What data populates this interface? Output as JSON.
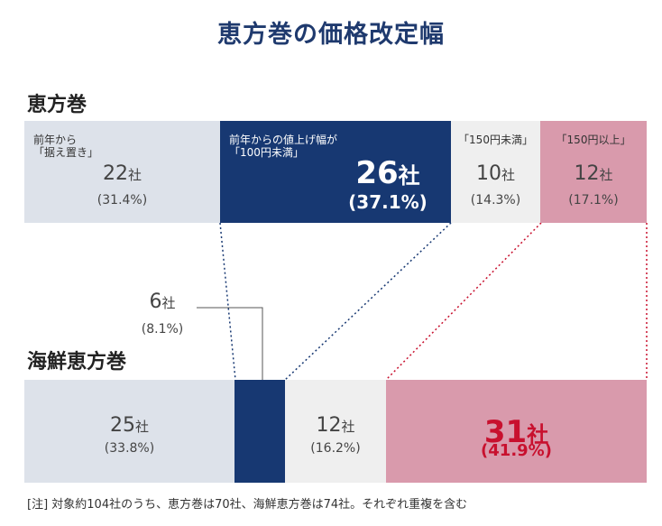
{
  "title": "恵方巻の価格改定幅",
  "colors": {
    "gray": "#dde2ea",
    "navy": "#173872",
    "lightgray": "#efefef",
    "pink": "#d99aac",
    "red": "#c8102e",
    "title": "#1f3a6e"
  },
  "chart_data": {
    "type": "bar",
    "orientation": "horizontal-stacked-100",
    "title": "恵方巻の価格改定幅",
    "note": "[注] 対象約104社のうち、恵方巻は70社、海鮮恵方巻は74社。それぞれ重複を含む",
    "categories": [
      "前年から「据え置き」",
      "前年からの値上げ幅が「100円未満」",
      "「150円未満」",
      "「150円以上」"
    ],
    "rows": [
      {
        "name": "恵方巻",
        "segments": [
          {
            "label_lines": [
              "前年から",
              "「据え置き」"
            ],
            "count": "22",
            "unit": "社",
            "pct": "(31.4%)",
            "value": 31.4
          },
          {
            "label_lines": [
              "前年からの値上げ幅が",
              "「100円未満」"
            ],
            "count": "26",
            "unit": "社",
            "pct": "(37.1%)",
            "value": 37.1
          },
          {
            "label_lines": [
              "「150円未満」"
            ],
            "count": "10",
            "unit": "社",
            "pct": "(14.3%)",
            "value": 14.3
          },
          {
            "label_lines": [
              "「150円以上」"
            ],
            "count": "12",
            "unit": "社",
            "pct": "(17.1%)",
            "value": 17.1
          }
        ]
      },
      {
        "name": "海鮮恵方巻",
        "segments": [
          {
            "count": "25",
            "unit": "社",
            "pct": "(33.8%)",
            "value": 33.8
          },
          {
            "count": "6",
            "unit": "社",
            "pct": "(8.1%)",
            "value": 8.1
          },
          {
            "count": "12",
            "unit": "社",
            "pct": "(16.2%)",
            "value": 16.2
          },
          {
            "count": "31",
            "unit": "社",
            "pct": "(41.9%)",
            "value": 41.9
          }
        ]
      }
    ]
  }
}
